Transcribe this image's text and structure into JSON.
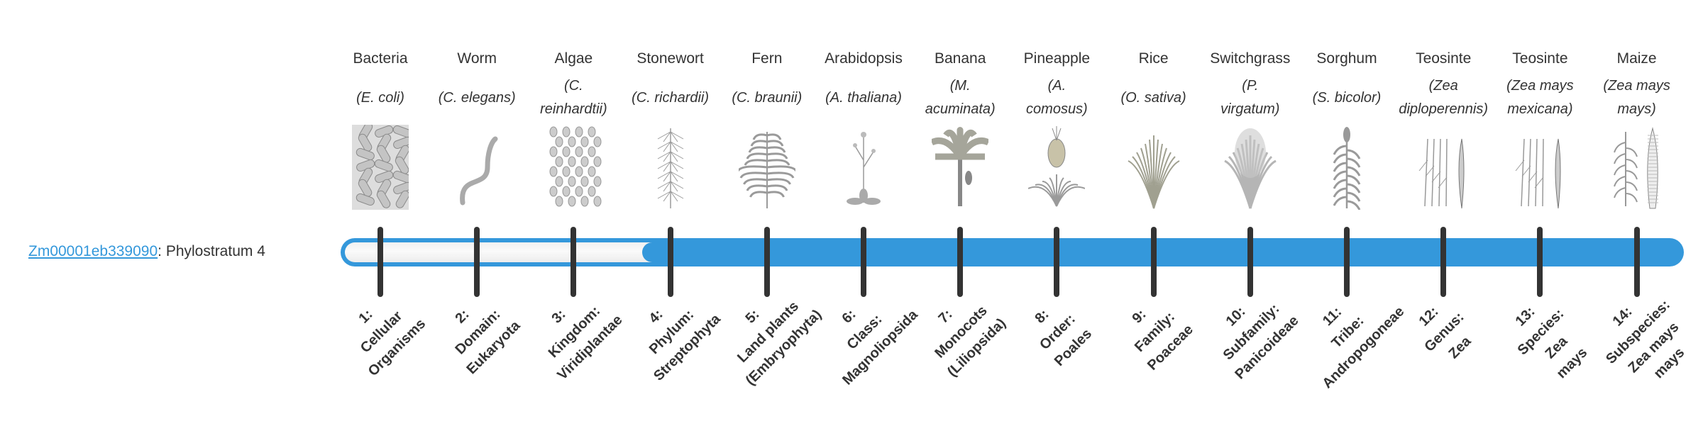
{
  "gene": {
    "id": "Zm00001eb339090",
    "suffix": ": Phylostratum 4"
  },
  "phylostratum": 4,
  "total_strata": 14,
  "colors": {
    "accent": "#3498db",
    "tick": "#333333",
    "empty": "#f5f5f5"
  },
  "organisms": [
    {
      "common": "Bacteria",
      "latin": [
        "(E. coli)"
      ],
      "icon": "bacteria-icon"
    },
    {
      "common": "Worm",
      "latin": [
        "(C. elegans)"
      ],
      "icon": "worm-icon"
    },
    {
      "common": "Algae",
      "latin": [
        "(C.",
        "reinhardtii)"
      ],
      "icon": "algae-icon"
    },
    {
      "common": "Stonewort",
      "latin": [
        "(C. richardii)"
      ],
      "icon": "stonewort-icon"
    },
    {
      "common": "Fern",
      "latin": [
        "(C. braunii)"
      ],
      "icon": "fern-icon"
    },
    {
      "common": "Arabidopsis",
      "latin": [
        "(A. thaliana)"
      ],
      "icon": "arabidopsis-icon"
    },
    {
      "common": "Banana",
      "latin": [
        "(M.",
        "acuminata)"
      ],
      "icon": "banana-icon"
    },
    {
      "common": "Pineapple",
      "latin": [
        "(A.",
        "comosus)"
      ],
      "icon": "pineapple-icon"
    },
    {
      "common": "Rice",
      "latin": [
        "(O. sativa)"
      ],
      "icon": "rice-icon"
    },
    {
      "common": "Switchgrass",
      "latin": [
        "(P.",
        "virgatum)"
      ],
      "icon": "switchgrass-icon"
    },
    {
      "common": "Sorghum",
      "latin": [
        "(S. bicolor)"
      ],
      "icon": "sorghum-icon"
    },
    {
      "common": "Teosinte",
      "latin": [
        "(Zea",
        "diploperennis)"
      ],
      "icon": "teosinte-icon"
    },
    {
      "common": "Teosinte",
      "latin": [
        "(Zea mays",
        "mexicana)"
      ],
      "icon": "teosinte-icon"
    },
    {
      "common": "Maize",
      "latin": [
        "(Zea mays",
        "mays)"
      ],
      "icon": "maize-icon"
    }
  ],
  "strata": [
    [
      "1:",
      "Cellular",
      "Organisms"
    ],
    [
      "2:",
      "Domain:",
      "Eukaryota"
    ],
    [
      "3:",
      "Kingdom:",
      "Viridiplantae"
    ],
    [
      "4:",
      "Phylum:",
      "Streptophyta"
    ],
    [
      "5:",
      "Land plants",
      "(Embryophyta)"
    ],
    [
      "6:",
      "Class:",
      "Magnoliopsida"
    ],
    [
      "7:",
      "Monocots",
      "(Liliopsida)"
    ],
    [
      "8:",
      "Order:",
      "Poales"
    ],
    [
      "9:",
      "Family:",
      "Poaceae"
    ],
    [
      "10:",
      "Subfamily:",
      "Panicoideae"
    ],
    [
      "11:",
      "Tribe:",
      "Andropogoneae"
    ],
    [
      "12:",
      "Genus:",
      "Zea"
    ],
    [
      "13:",
      "Species:",
      "Zea",
      "mays"
    ],
    [
      "14:",
      "Subspecies:",
      "Zea mays",
      "mays"
    ]
  ]
}
